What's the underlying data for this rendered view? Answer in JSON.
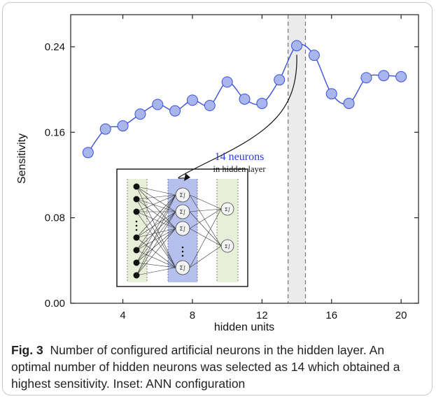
{
  "chart_data": {
    "type": "line",
    "xlabel": "hidden units",
    "ylabel": "Sensitivity",
    "xlim": [
      1,
      21
    ],
    "ylim": [
      0.0,
      0.27
    ],
    "x_ticks": [
      "4",
      "8",
      "12",
      "16",
      "20"
    ],
    "y_ticks": [
      "0.00",
      "0.08",
      "0.16",
      "0.24"
    ],
    "series": [
      {
        "marker": "circle",
        "color": "#3a4fe0",
        "marker_fill": "#a9b6ec",
        "x": [
          2,
          3,
          4,
          5,
          6,
          7,
          8,
          9,
          10,
          11,
          12,
          13,
          14,
          15,
          16,
          17,
          18,
          19,
          20
        ],
        "y": [
          0.141,
          0.163,
          0.166,
          0.177,
          0.186,
          0.18,
          0.19,
          0.185,
          0.207,
          0.191,
          0.187,
          0.209,
          0.241,
          0.232,
          0.196,
          0.187,
          0.211,
          0.213,
          0.212
        ]
      }
    ],
    "highlight_band": {
      "x_from": 13.5,
      "x_to": 14.5,
      "color": "#ebebeb"
    },
    "annotation": {
      "line1": "14 neurons",
      "line2": "in hidden layer",
      "color": "#2a3fe0"
    }
  },
  "caption": {
    "label": "Fig. 3",
    "text": "Number of configured artificial neurons in the hidden layer. An optimal number of hidden neurons was selected as 14 which obtained a highest sensitivity. Inset: ANN configuration"
  },
  "inset": {
    "input_count": 7,
    "hidden_count": 4,
    "output_count": 2,
    "neuron_symbol": "Σ∫",
    "colors": {
      "input_band": "#e7efd8",
      "hidden_band": "#b6c0ee",
      "output_band": "#e7efd8"
    }
  }
}
